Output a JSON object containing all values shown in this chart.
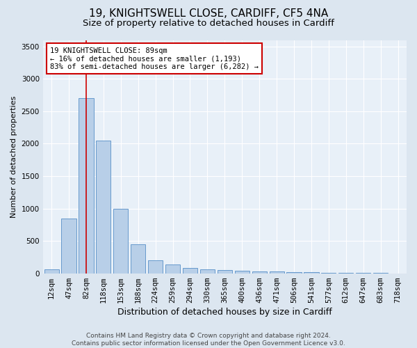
{
  "title1": "19, KNIGHTSWELL CLOSE, CARDIFF, CF5 4NA",
  "title2": "Size of property relative to detached houses in Cardiff",
  "xlabel": "Distribution of detached houses by size in Cardiff",
  "ylabel": "Number of detached properties",
  "categories": [
    "12sqm",
    "47sqm",
    "82sqm",
    "118sqm",
    "153sqm",
    "188sqm",
    "224sqm",
    "259sqm",
    "294sqm",
    "330sqm",
    "365sqm",
    "400sqm",
    "436sqm",
    "471sqm",
    "506sqm",
    "541sqm",
    "577sqm",
    "612sqm",
    "647sqm",
    "683sqm",
    "718sqm"
  ],
  "values": [
    60,
    850,
    2700,
    2050,
    1000,
    450,
    200,
    140,
    80,
    60,
    50,
    40,
    30,
    25,
    20,
    15,
    10,
    8,
    5,
    3,
    2
  ],
  "bar_color": "#b8cfe8",
  "bar_edge_color": "#6699cc",
  "vline_x": 2,
  "vline_color": "#cc0000",
  "annotation_text": "19 KNIGHTSWELL CLOSE: 89sqm\n← 16% of detached houses are smaller (1,193)\n83% of semi-detached houses are larger (6,282) →",
  "annotation_box_color": "#ffffff",
  "annotation_border_color": "#cc0000",
  "ylim": [
    0,
    3600
  ],
  "yticks": [
    0,
    500,
    1000,
    1500,
    2000,
    2500,
    3000,
    3500
  ],
  "background_color": "#dce6f0",
  "plot_bg_color": "#e8f0f8",
  "footer": "Contains HM Land Registry data © Crown copyright and database right 2024.\nContains public sector information licensed under the Open Government Licence v3.0.",
  "title1_fontsize": 11,
  "title2_fontsize": 9.5,
  "xlabel_fontsize": 9,
  "ylabel_fontsize": 8,
  "tick_fontsize": 7.5,
  "footer_fontsize": 6.5,
  "annot_fontsize": 7.5
}
